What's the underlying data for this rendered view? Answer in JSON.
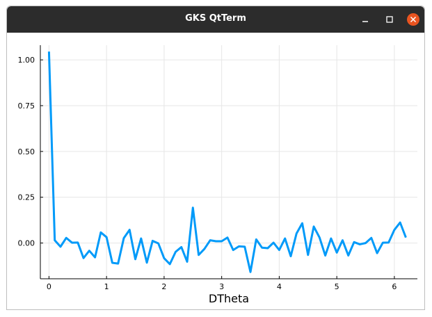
{
  "window": {
    "title": "GKS QtTerm",
    "controls": {
      "minimize_icon": "minimize-icon",
      "maximize_icon": "maximize-icon",
      "close_icon": "close-icon"
    },
    "close_color": "#e95420"
  },
  "chart_data": {
    "type": "line",
    "title": "",
    "xlabel": "DTheta",
    "ylabel": "",
    "xlim": [
      -0.15,
      6.4
    ],
    "ylim": [
      -0.195,
      1.08
    ],
    "xticks": [
      0,
      1,
      2,
      3,
      4,
      5,
      6
    ],
    "xtick_labels": [
      "0",
      "1",
      "2",
      "3",
      "4",
      "5",
      "6"
    ],
    "yticks": [
      0.0,
      0.25,
      0.5,
      0.75,
      1.0
    ],
    "ytick_labels": [
      "0.00",
      "0.25",
      "0.50",
      "0.75",
      "1.00"
    ],
    "grid": true,
    "legend": "none",
    "line_color": "#009af9",
    "series": [
      {
        "x": [
          0.0,
          0.1,
          0.2,
          0.3,
          0.4,
          0.5,
          0.6,
          0.7,
          0.8,
          0.9,
          1.0,
          1.1,
          1.2,
          1.3,
          1.4,
          1.5,
          1.6,
          1.7,
          1.8,
          1.9,
          2.0,
          2.1,
          2.2,
          2.3,
          2.4,
          2.5,
          2.6,
          2.7,
          2.8,
          2.9,
          3.0,
          3.1,
          3.2,
          3.3,
          3.4,
          3.5,
          3.6,
          3.7,
          3.8,
          3.9,
          4.0,
          4.1,
          4.2,
          4.3,
          4.4,
          4.5,
          4.6,
          4.7,
          4.8,
          4.9,
          5.0,
          5.1,
          5.2,
          5.3,
          5.4,
          5.5,
          5.6,
          5.7,
          5.8,
          5.9,
          6.0,
          6.1,
          6.2
        ],
        "values": [
          1.045,
          0.015,
          -0.02,
          0.028,
          0.002,
          0.003,
          -0.082,
          -0.042,
          -0.078,
          0.058,
          0.032,
          -0.108,
          -0.112,
          0.027,
          0.072,
          -0.088,
          0.025,
          -0.107,
          0.012,
          -0.002,
          -0.083,
          -0.115,
          -0.048,
          -0.022,
          -0.102,
          0.193,
          -0.065,
          -0.032,
          0.015,
          0.01,
          0.01,
          0.03,
          -0.038,
          -0.018,
          -0.02,
          -0.158,
          0.02,
          -0.025,
          -0.028,
          0.002,
          -0.038,
          0.025,
          -0.072,
          0.052,
          0.108,
          -0.065,
          0.09,
          0.03,
          -0.068,
          0.025,
          -0.052,
          0.015,
          -0.068,
          0.005,
          -0.007,
          0.0,
          0.028,
          -0.055,
          0.002,
          0.003,
          0.072,
          0.112,
          0.03
        ]
      }
    ]
  }
}
